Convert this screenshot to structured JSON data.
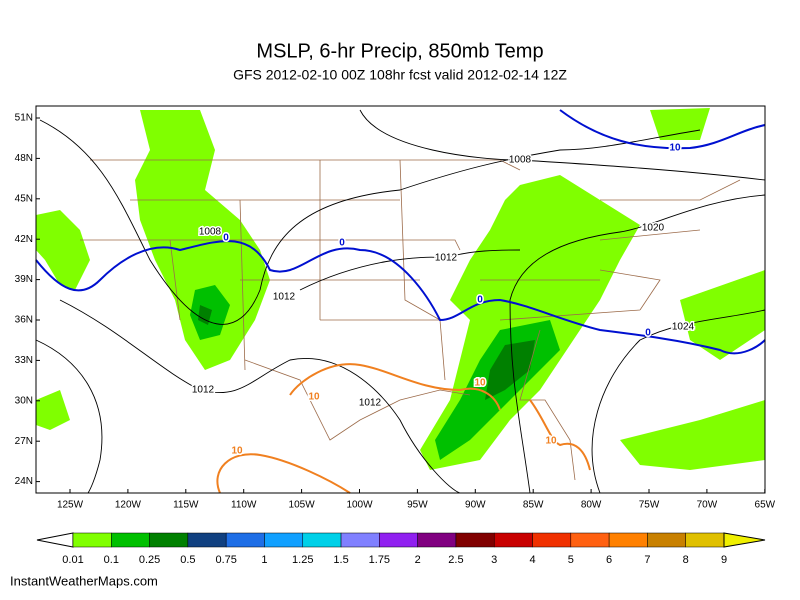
{
  "header": {
    "title": "MSLP, 6-hr Precip, 850mb Temp",
    "subtitle": "GFS 2012-02-10 00Z 108hr fcst valid 2012-02-14 12Z"
  },
  "map": {
    "lat_labels": [
      "51N",
      "48N",
      "45N",
      "42N",
      "39N",
      "36N",
      "33N",
      "30N",
      "27N",
      "24N"
    ],
    "lon_labels": [
      "125W",
      "120W",
      "115W",
      "110W",
      "105W",
      "100W",
      "95W",
      "90W",
      "85W",
      "80W",
      "75W",
      "70W",
      "65W"
    ],
    "isobar_labels": {
      "color": "#000000",
      "labels": [
        "1008",
        "1020",
        "1008",
        "1012",
        "1012",
        "1024",
        "1012",
        "1012"
      ]
    },
    "freezing_labels": {
      "color": "#0010d0",
      "labels": [
        "10",
        "0",
        "0",
        "0",
        "0"
      ]
    },
    "warm_labels": {
      "color": "#f08020",
      "labels": [
        "10",
        "10",
        "10",
        "10"
      ]
    }
  },
  "colorbar": {
    "labels": [
      "0.01",
      "0.1",
      "0.25",
      "0.5",
      "0.75",
      "1",
      "1.25",
      "1.5",
      "1.75",
      "2",
      "2.5",
      "3",
      "4",
      "5",
      "6",
      "7",
      "8",
      "9"
    ],
    "colors": [
      "#80ff00",
      "#00c000",
      "#008000",
      "#104080",
      "#1e6ee6",
      "#10a0ff",
      "#00d0e8",
      "#8080ff",
      "#9020f0",
      "#800080",
      "#800000",
      "#c80000",
      "#f03000",
      "#ff6010",
      "#ff8000",
      "#c88000",
      "#e0c000",
      "#f0f000"
    ]
  },
  "footer": "InstantWeatherMaps.com"
}
